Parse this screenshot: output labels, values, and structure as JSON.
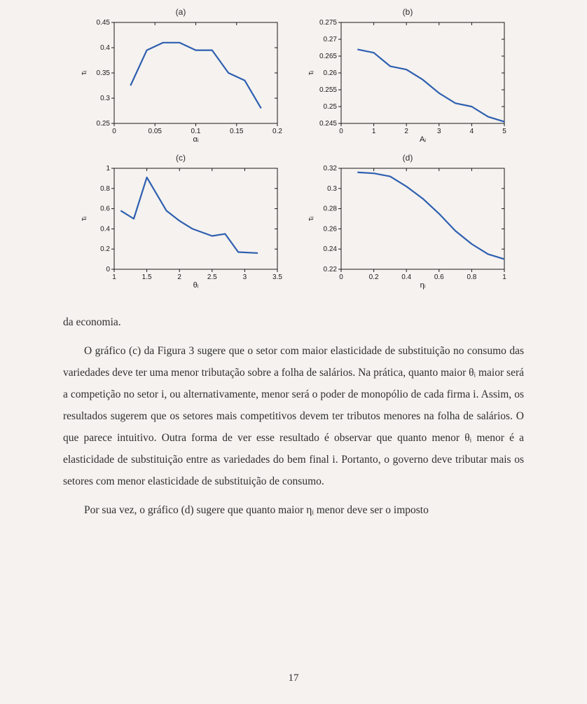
{
  "page_number": "17",
  "text": {
    "frag1": "da economia.",
    "p1": "O gráfico (c) da Figura 3 sugere que o setor com maior elasticidade de substituição no consumo das variedades deve ter uma menor tributação sobre a folha de salários. Na prática, quanto maior θᵢ maior será a competição no setor i, ou alternativamente, menor será o poder de monopólio de cada firma i. Assim, os resultados sugerem que os setores mais competitivos devem ter tributos menores na folha de salários. O que parece intuitivo. Outra forma de ver esse resultado é observar que quanto menor θᵢ menor é a elasticidade de substituição entre as variedades do bem final i. Portanto, o governo deve tributar mais os setores com menor elasticidade de substituição de consumo.",
    "p2": "Por sua vez, o gráfico (d) sugere que quanto maior ηᵢ menor deve ser o imposto"
  },
  "theme": {
    "line_color": "#2e5fb0",
    "axis_color": "#1a1a1a",
    "bg": "#f5f2ef",
    "tick_fontsize": 10,
    "title_fontsize": 12,
    "line_width": 2.2
  },
  "charts": {
    "a": {
      "title": "(a)",
      "xlabel": "αᵢ",
      "ylabel": "τᵢ",
      "xlim": [
        0,
        0.2
      ],
      "ylim": [
        0.25,
        0.45
      ],
      "xticks": [
        0,
        0.05,
        0.1,
        0.15,
        0.2
      ],
      "yticks": [
        0.25,
        0.3,
        0.35,
        0.4,
        0.45
      ],
      "data": [
        [
          0.02,
          0.325
        ],
        [
          0.04,
          0.395
        ],
        [
          0.06,
          0.41
        ],
        [
          0.08,
          0.41
        ],
        [
          0.1,
          0.395
        ],
        [
          0.12,
          0.395
        ],
        [
          0.14,
          0.35
        ],
        [
          0.16,
          0.335
        ],
        [
          0.18,
          0.28
        ]
      ]
    },
    "b": {
      "title": "(b)",
      "xlabel": "Aᵢ",
      "ylabel": "τᵢ",
      "xlim": [
        0,
        5
      ],
      "ylim": [
        0.245,
        0.275
      ],
      "xticks": [
        0,
        1,
        2,
        3,
        4,
        5
      ],
      "yticks": [
        0.245,
        0.25,
        0.255,
        0.26,
        0.265,
        0.27,
        0.275
      ],
      "data": [
        [
          0.5,
          0.267
        ],
        [
          1.0,
          0.266
        ],
        [
          1.5,
          0.262
        ],
        [
          2.0,
          0.261
        ],
        [
          2.5,
          0.258
        ],
        [
          3.0,
          0.254
        ],
        [
          3.5,
          0.251
        ],
        [
          4.0,
          0.25
        ],
        [
          4.5,
          0.247
        ],
        [
          5.0,
          0.2455
        ]
      ]
    },
    "c": {
      "title": "(c)",
      "xlabel": "θᵢ",
      "ylabel": "τᵢ",
      "xlim": [
        1,
        3.5
      ],
      "ylim": [
        0,
        1
      ],
      "xticks": [
        1,
        1.5,
        2,
        2.5,
        3,
        3.5
      ],
      "yticks": [
        0,
        0.2,
        0.4,
        0.6,
        0.8,
        1
      ],
      "data": [
        [
          1.1,
          0.58
        ],
        [
          1.3,
          0.5
        ],
        [
          1.5,
          0.91
        ],
        [
          1.8,
          0.58
        ],
        [
          2.0,
          0.48
        ],
        [
          2.2,
          0.4
        ],
        [
          2.5,
          0.33
        ],
        [
          2.7,
          0.35
        ],
        [
          2.9,
          0.17
        ],
        [
          3.2,
          0.16
        ]
      ]
    },
    "d": {
      "title": "(d)",
      "xlabel": "ηᵢ",
      "ylabel": "τᵢ",
      "xlim": [
        0,
        1
      ],
      "ylim": [
        0.22,
        0.32
      ],
      "xticks": [
        0,
        0.2,
        0.4,
        0.6,
        0.8,
        1
      ],
      "yticks": [
        0.22,
        0.24,
        0.26,
        0.28,
        0.3,
        0.32
      ],
      "data": [
        [
          0.1,
          0.316
        ],
        [
          0.2,
          0.315
        ],
        [
          0.3,
          0.312
        ],
        [
          0.4,
          0.302
        ],
        [
          0.5,
          0.29
        ],
        [
          0.6,
          0.275
        ],
        [
          0.7,
          0.258
        ],
        [
          0.8,
          0.245
        ],
        [
          0.9,
          0.235
        ],
        [
          1.0,
          0.23
        ]
      ]
    }
  }
}
